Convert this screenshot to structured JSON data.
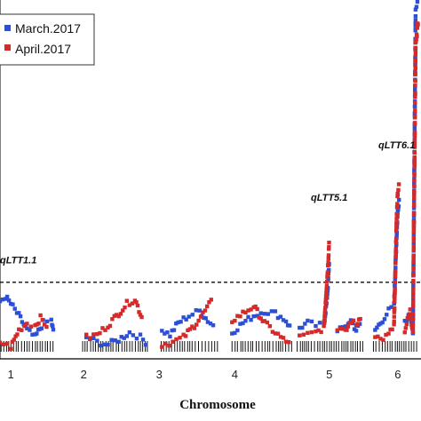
{
  "chart_data": {
    "type": "scatter",
    "xlabel": "Chromosome",
    "ylabel": "",
    "chromosomes": [
      "1",
      "2",
      "3",
      "4",
      "5",
      "6"
    ],
    "threshold": 3.2,
    "ylim": [
      0,
      15
    ],
    "legend_position": "top-left",
    "series": [
      {
        "name": "March.2017",
        "color": "#2d4fd6",
        "segments": [
          [
            [
              0,
              2.4
            ],
            [
              0.1,
              2.6
            ],
            [
              0.2,
              2.3
            ],
            [
              0.35,
              1.8
            ],
            [
              0.5,
              1.2
            ],
            [
              0.65,
              0.9
            ],
            [
              0.8,
              1.5
            ],
            [
              0.95,
              1.6
            ],
            [
              1.0,
              1.0
            ]
          ],
          [
            [
              1.6,
              0.9
            ],
            [
              1.8,
              0.7
            ],
            [
              2.0,
              0.6
            ],
            [
              2.2,
              0.8
            ],
            [
              2.4,
              1.1
            ],
            [
              2.6,
              0.9
            ],
            [
              2.75,
              0.6
            ]
          ],
          [
            [
              3.0,
              1.2
            ],
            [
              3.15,
              1.0
            ],
            [
              3.3,
              1.5
            ],
            [
              3.5,
              1.8
            ],
            [
              3.7,
              2.0
            ],
            [
              3.85,
              1.6
            ],
            [
              4.0,
              1.3
            ]
          ],
          [
            [
              4.3,
              1.1
            ],
            [
              4.5,
              1.5
            ],
            [
              4.7,
              1.8
            ],
            [
              4.9,
              2.0
            ],
            [
              5.1,
              1.9
            ],
            [
              5.3,
              1.6
            ],
            [
              5.4,
              1.2
            ]
          ],
          [
            [
              5.55,
              1.3
            ],
            [
              5.7,
              1.5
            ],
            [
              5.85,
              1.4
            ],
            [
              6.0,
              1.4
            ],
            [
              6.05,
              2.3
            ],
            [
              6.08,
              3.2
            ],
            [
              6.1,
              4.2
            ]
          ],
          [
            [
              6.25,
              1.1
            ],
            [
              6.4,
              1.4
            ],
            [
              6.5,
              1.6
            ],
            [
              6.6,
              1.2
            ],
            [
              6.7,
              1.5
            ]
          ],
          [
            [
              6.95,
              1.2
            ],
            [
              7.05,
              1.5
            ],
            [
              7.2,
              2.0
            ],
            [
              7.3,
              2.2
            ],
            [
              7.35,
              5.2
            ],
            [
              7.37,
              6.2
            ],
            [
              7.4,
              6.8
            ]
          ],
          [
            [
              7.5,
              1.6
            ],
            [
              7.6,
              1.9
            ],
            [
              7.65,
              1.0
            ],
            [
              7.7,
              14.5
            ],
            [
              7.75,
              15.0
            ]
          ]
        ]
      },
      {
        "name": "April.2017",
        "color": "#d42a2a",
        "segments": [
          [
            [
              0,
              0.7
            ],
            [
              0.2,
              0.5
            ],
            [
              0.35,
              1.2
            ],
            [
              0.5,
              1.5
            ],
            [
              0.65,
              1.4
            ],
            [
              0.75,
              1.7
            ],
            [
              0.9,
              1.3
            ]
          ],
          [
            [
              1.6,
              0.9
            ],
            [
              1.8,
              1.0
            ],
            [
              2.0,
              1.4
            ],
            [
              2.2,
              1.9
            ],
            [
              2.35,
              2.3
            ],
            [
              2.5,
              2.5
            ],
            [
              2.65,
              1.6
            ]
          ],
          [
            [
              3.0,
              0.6
            ],
            [
              3.2,
              0.7
            ],
            [
              3.4,
              0.9
            ],
            [
              3.6,
              1.4
            ],
            [
              3.8,
              2.0
            ],
            [
              3.95,
              2.5
            ]
          ],
          [
            [
              4.3,
              1.6
            ],
            [
              4.5,
              1.9
            ],
            [
              4.7,
              2.2
            ],
            [
              4.9,
              1.5
            ],
            [
              5.1,
              1.1
            ],
            [
              5.3,
              0.7
            ],
            [
              5.4,
              0.8
            ]
          ],
          [
            [
              5.55,
              0.9
            ],
            [
              5.7,
              1.0
            ],
            [
              5.85,
              1.1
            ],
            [
              6.0,
              1.3
            ],
            [
              6.05,
              3.0
            ],
            [
              6.08,
              4.0
            ],
            [
              6.1,
              5.0
            ]
          ],
          [
            [
              6.25,
              1.3
            ],
            [
              6.4,
              1.1
            ],
            [
              6.5,
              1.6
            ],
            [
              6.6,
              1.4
            ],
            [
              6.7,
              1.9
            ]
          ],
          [
            [
              6.95,
              1.0
            ],
            [
              7.05,
              0.8
            ],
            [
              7.2,
              1.0
            ],
            [
              7.3,
              1.4
            ],
            [
              7.35,
              6.0
            ],
            [
              7.37,
              7.0
            ],
            [
              7.4,
              7.4
            ]
          ],
          [
            [
              7.5,
              1.2
            ],
            [
              7.6,
              2.0
            ],
            [
              7.65,
              1.2
            ],
            [
              7.7,
              13.0
            ],
            [
              7.75,
              14.2
            ]
          ]
        ]
      }
    ],
    "annotations": [
      {
        "text": "qLTT1.1",
        "x": 0.0,
        "y": 4.0
      },
      {
        "text": "qLTT5.1",
        "x": 6.1,
        "y": 6.6
      },
      {
        "text": "qLTT6.1",
        "x": 7.35,
        "y": 8.8
      }
    ]
  }
}
